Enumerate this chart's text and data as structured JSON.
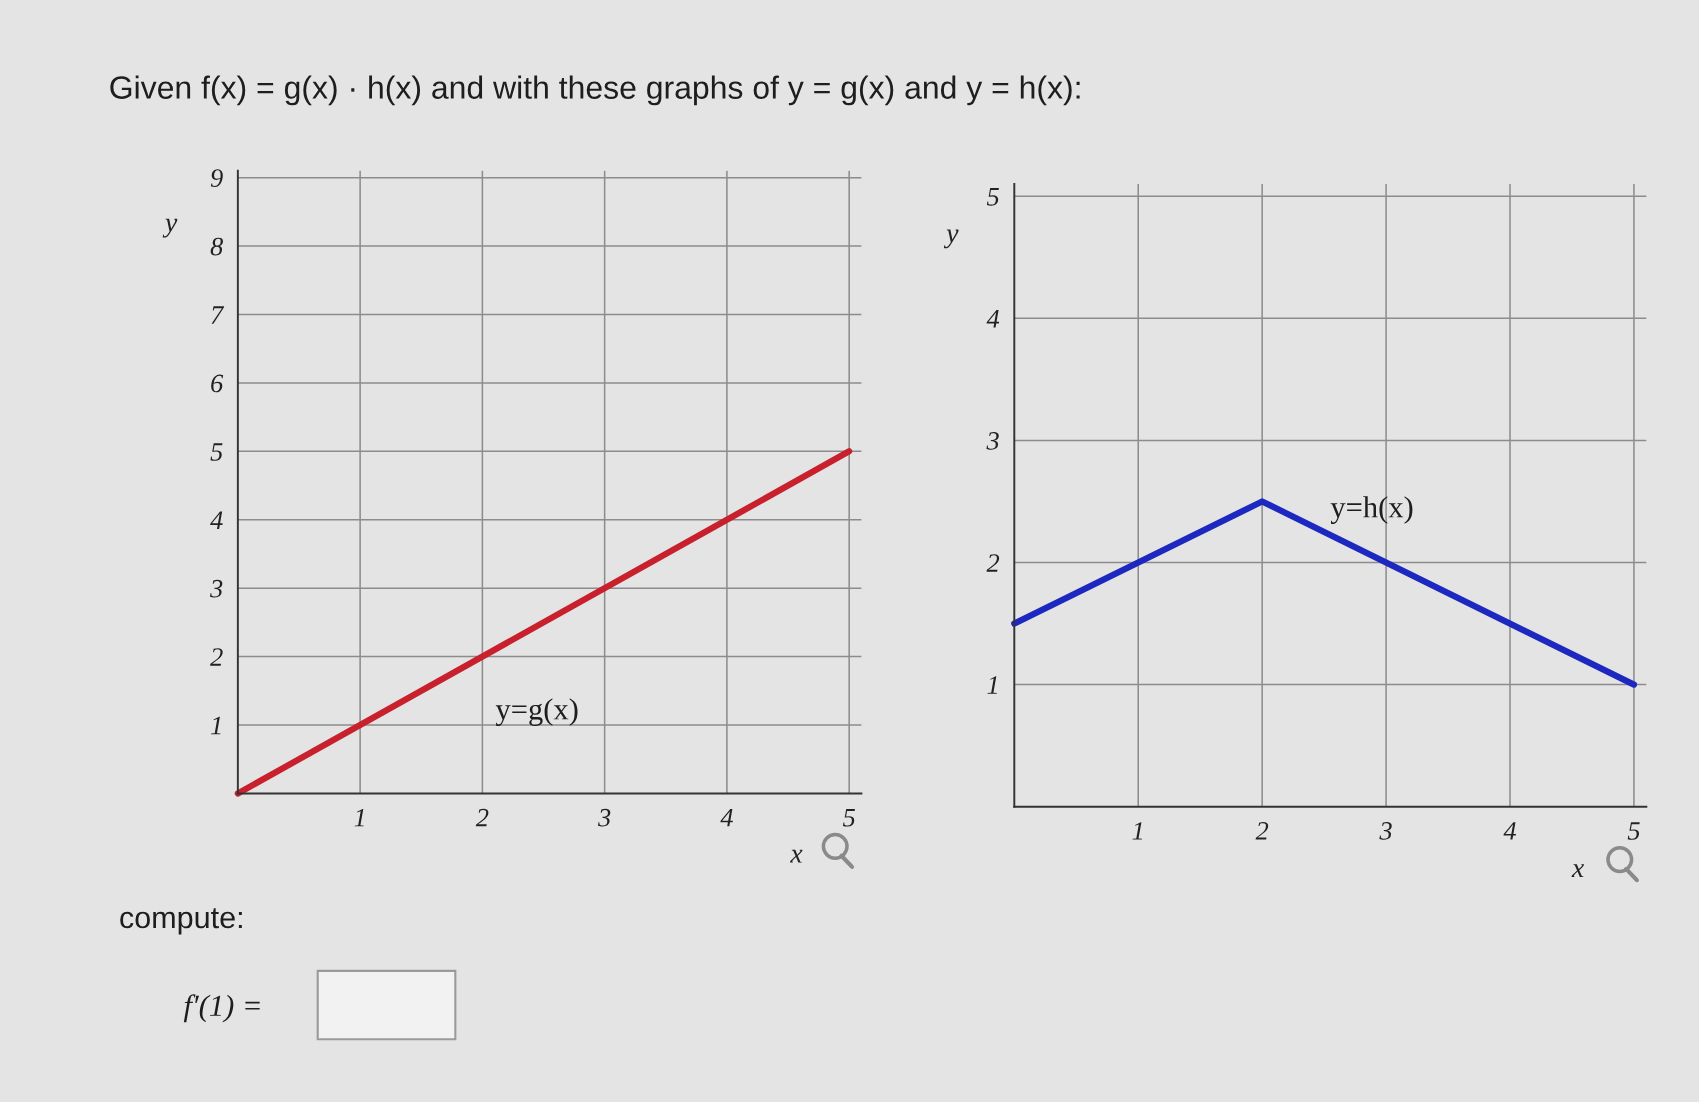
{
  "chart_data": [
    {
      "type": "line",
      "title": "Given f(x) = g(x) · h(x) and with these graphs of y = g(x) and y = h(x):",
      "xlabel": "x",
      "ylabel": "y",
      "x": [
        0,
        5
      ],
      "series": [
        {
          "name": "y=g(x)",
          "color": "#c8202c",
          "values": [
            0,
            5
          ]
        }
      ],
      "xlim": [
        0,
        5.1
      ],
      "ylim": [
        0,
        9.1
      ],
      "xticks": [
        1,
        2,
        3,
        4,
        5
      ],
      "yticks": [
        1,
        2,
        3,
        4,
        5,
        6,
        7,
        8,
        9
      ],
      "grid": true,
      "annotations": [
        "compute:",
        "f′(1) ="
      ]
    },
    {
      "type": "line",
      "xlabel": "x",
      "ylabel": "y",
      "x": [
        0,
        2,
        5
      ],
      "series": [
        {
          "name": "y=h(x)",
          "color": "#1c28c0",
          "values": [
            1.5,
            2.5,
            1
          ]
        }
      ],
      "xlim": [
        0,
        5.1
      ],
      "ylim": [
        0,
        5.1
      ],
      "xticks": [
        1,
        2,
        3,
        4,
        5
      ],
      "yticks": [
        1,
        2,
        3,
        4,
        5
      ],
      "grid": true
    }
  ]
}
